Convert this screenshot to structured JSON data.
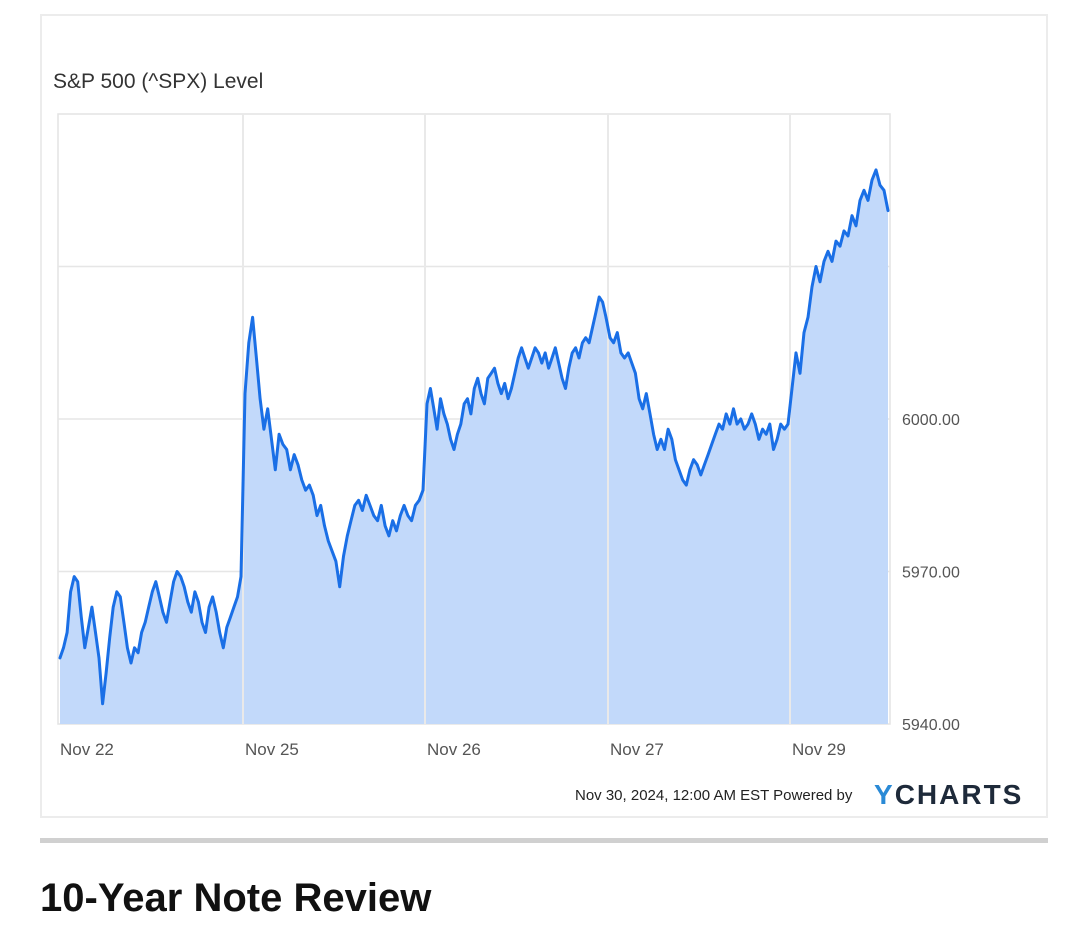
{
  "chart_data": {
    "type": "area",
    "title": "S&P 500 (^SPX) Level",
    "xlabel": "",
    "ylabel": "",
    "y_axis_position": "right",
    "ylim": [
      5940,
      6060
    ],
    "yticks": [
      5940,
      5970,
      6000
    ],
    "ytick_labels": [
      "5940.00",
      "5970.00",
      "6000.00"
    ],
    "x_tick_labels": [
      "Nov 22",
      "Nov 25",
      "Nov 26",
      "Nov 27",
      "Nov 29"
    ],
    "grid": true,
    "line_color": "#1a6fe6",
    "fill_color": "#c2d9fa",
    "series": [
      {
        "sessions": [
          {
            "date": "Nov 22",
            "values": [
              5953,
              5955,
              5958,
              5966,
              5969,
              5968,
              5961,
              5955,
              5959,
              5963,
              5958,
              5953,
              5944,
              5950,
              5957,
              5963,
              5966,
              5965,
              5960,
              5955,
              5952,
              5955,
              5954,
              5958,
              5960,
              5963,
              5966,
              5968,
              5965,
              5962,
              5960,
              5964,
              5968,
              5970,
              5969,
              5967,
              5964,
              5962,
              5966,
              5964,
              5960,
              5958,
              5963,
              5965,
              5962,
              5958,
              5955,
              5959,
              5961,
              5963,
              5965,
              5969
            ]
          },
          {
            "date": "Nov 25",
            "values": [
              6005,
              6015,
              6020,
              6012,
              6004,
              5998,
              6002,
              5996,
              5990,
              5997,
              5995,
              5994,
              5990,
              5993,
              5991,
              5988,
              5986,
              5987,
              5985,
              5981,
              5983,
              5979,
              5976,
              5974,
              5972,
              5967,
              5973,
              5977,
              5980,
              5983,
              5984,
              5982,
              5985,
              5983,
              5981,
              5980,
              5983,
              5979,
              5977,
              5980,
              5978,
              5981,
              5983,
              5981,
              5980,
              5983,
              5984,
              5986
            ]
          },
          {
            "date": "Nov 26",
            "values": [
              6003,
              6006,
              6002,
              5998,
              6004,
              6001,
              5999,
              5996,
              5994,
              5997,
              5999,
              6003,
              6004,
              6001,
              6006,
              6008,
              6005,
              6003,
              6008,
              6009,
              6010,
              6007,
              6005,
              6007,
              6004,
              6006,
              6009,
              6012,
              6014,
              6012,
              6010,
              6012,
              6014,
              6013,
              6011,
              6013,
              6010,
              6012,
              6014,
              6011,
              6008,
              6006,
              6010,
              6013,
              6014,
              6012,
              6015,
              6016,
              6015,
              6018,
              6021,
              6024,
              6023,
              6020
            ]
          },
          {
            "date": "Nov 27",
            "values": [
              6016,
              6015,
              6017,
              6013,
              6012,
              6013,
              6011,
              6009,
              6004,
              6002,
              6005,
              6001,
              5997,
              5994,
              5996,
              5994,
              5998,
              5996,
              5992,
              5990,
              5988,
              5987,
              5990,
              5992,
              5991,
              5989,
              5991,
              5993,
              5995,
              5997,
              5999,
              5998,
              6001,
              5999,
              6002,
              5999,
              6000,
              5998,
              5999,
              6001,
              5999,
              5996,
              5998,
              5997,
              5999,
              5994,
              5996,
              5999,
              5998,
              5999
            ]
          },
          {
            "date": "Nov 29",
            "values": [
              6006,
              6013,
              6009,
              6017,
              6020,
              6026,
              6030,
              6027,
              6031,
              6033,
              6031,
              6035,
              6034,
              6037,
              6036,
              6040,
              6038,
              6043,
              6045,
              6043,
              6047,
              6049,
              6046,
              6045,
              6041
            ]
          }
        ]
      }
    ]
  },
  "footer": {
    "timestamp": "Nov 30, 2024, 12:00 AM EST Powered by",
    "brand_y": "Y",
    "brand_rest": "CHARTS"
  },
  "section": {
    "heading": "10-Year Note Review"
  }
}
